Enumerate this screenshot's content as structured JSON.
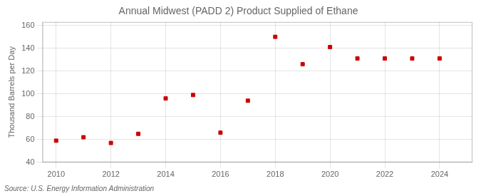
{
  "chart_data": {
    "type": "scatter",
    "title": "Annual Midwest (PADD 2) Product Supplied of Ethane",
    "y_label": "Thousand Barrels per Day",
    "annotations": [
      "Source: U.S. Energy Information Administration"
    ],
    "x": [
      2010,
      2011,
      2012,
      2013,
      2014,
      2015,
      2016,
      2017,
      2018,
      2019,
      2020,
      2021,
      2022,
      2023,
      2024
    ],
    "values": [
      59,
      62,
      57,
      65,
      96,
      99,
      66,
      94,
      150,
      126,
      141,
      131,
      131,
      131,
      131
    ],
    "color": "#cc0000",
    "marker": "square",
    "xlim": [
      2009.5,
      2025.2
    ],
    "ylim": [
      40,
      163
    ],
    "xticks": [
      2010,
      2012,
      2014,
      2016,
      2018,
      2020,
      2022,
      2024
    ],
    "yticks": [
      40,
      60,
      80,
      100,
      120,
      140,
      160
    ],
    "grid": true,
    "legend": false
  }
}
